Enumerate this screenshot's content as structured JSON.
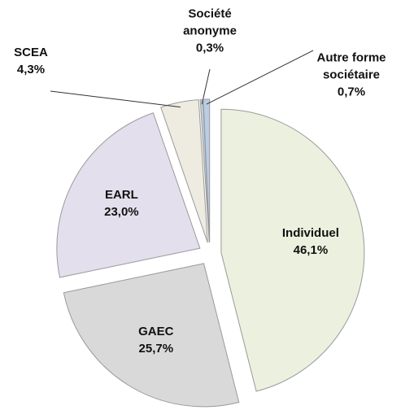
{
  "chart_data": {
    "type": "pie",
    "categories": [
      "Individuel",
      "GAEC",
      "EARL",
      "SCEA",
      "Société anonyme",
      "Autre forme sociétaire"
    ],
    "values": [
      46.1,
      25.7,
      23.0,
      4.3,
      0.3,
      0.7
    ],
    "value_labels": [
      "46,1%",
      "25,7%",
      "23,0%",
      "4,3%",
      "0,3%",
      "0,7%"
    ],
    "colors": [
      "#ebf1de",
      "#d9d9d9",
      "#e4dfec",
      "#eeece1",
      "#c5cfdc",
      "#b9cde5"
    ]
  }
}
